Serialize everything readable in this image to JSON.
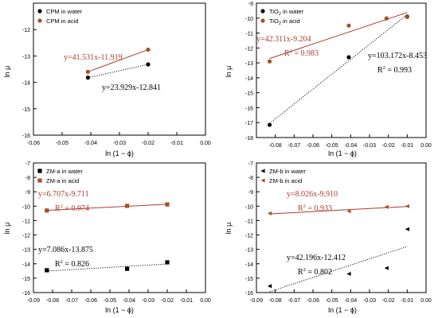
{
  "chart_data": [
    {
      "type": "scatter",
      "xlabel": "ln (1 − ϕ)",
      "ylabel": "ln μ",
      "xlim": [
        -0.06,
        0.0
      ],
      "ylim": [
        -16,
        -11
      ],
      "xticks": [
        -0.06,
        -0.05,
        -0.04,
        -0.03,
        -0.02,
        -0.01,
        0.0
      ],
      "xtick_labels": [
        "-0.06",
        "-0.05",
        "-0.04",
        "-0.03",
        "-0.02",
        "-0.01",
        "0.00"
      ],
      "yticks": [
        -16,
        -15,
        -14,
        -13,
        -12,
        -11
      ],
      "ytick_labels": [
        "-16",
        "-15",
        "-14",
        "-13",
        "-12",
        ""
      ],
      "legend_position": "top-left",
      "series": [
        {
          "name": "CPM in water",
          "marker": "circle",
          "color": "#000000",
          "x": [
            -0.041,
            -0.02
          ],
          "y": [
            -13.82,
            -13.32
          ],
          "fit": {
            "x": [
              -0.041,
              -0.02
            ],
            "style": "dotted",
            "color": "#000000",
            "label": "y=23.929x-12.841"
          }
        },
        {
          "name": "CPM in acid",
          "marker": "circle",
          "color": "#a0522d",
          "x": [
            -0.041,
            -0.02
          ],
          "y": [
            -13.6,
            -12.76
          ],
          "fit": {
            "x": [
              -0.041,
              -0.02
            ],
            "style": "solid",
            "color": "#b03a2e",
            "label": "y=41.531x-11.919"
          }
        }
      ]
    },
    {
      "type": "scatter",
      "xlabel": "ln (1 − ϕ)",
      "ylabel": "ln μ",
      "xlim": [
        -0.09,
        0.0
      ],
      "ylim": [
        -18,
        -9
      ],
      "xticks": [
        -0.09,
        -0.08,
        -0.07,
        -0.06,
        -0.05,
        -0.04,
        -0.03,
        -0.02,
        -0.01,
        0.0
      ],
      "xtick_labels": [
        "",
        "-0.08",
        "-0.07",
        "-0.06",
        "-0.05",
        "-0.04",
        "-0.03",
        "-0.02",
        "-0.01",
        "0.00"
      ],
      "yticks": [
        -18,
        -17,
        -16,
        -15,
        -14,
        -13,
        -12,
        -11,
        -10,
        -9
      ],
      "ytick_labels": [
        "-18",
        "-17",
        "-16",
        "-15",
        "-14",
        "-13",
        "-12",
        "-11",
        "-10",
        "-9"
      ],
      "legend_position": "top-left",
      "series": [
        {
          "name": "TiO",
          "name_sub": "2",
          "name_rest": " in water",
          "marker": "circle",
          "color": "#000000",
          "x": [
            -0.083,
            -0.041,
            -0.01
          ],
          "y": [
            -17.15,
            -12.62,
            -9.9
          ],
          "fit": {
            "x": [
              -0.083,
              -0.01
            ],
            "style": "dotted",
            "color": "#000000",
            "label": "y=103.172x-8.453",
            "r2": "0.993"
          }
        },
        {
          "name": "TiO",
          "name_sub": "2",
          "name_rest": " in acid",
          "marker": "circle",
          "color": "#a0522d",
          "x": [
            -0.083,
            -0.041,
            -0.021,
            -0.01
          ],
          "y": [
            -12.9,
            -10.5,
            -10.02,
            -9.93
          ],
          "fit": {
            "x": [
              -0.083,
              -0.01
            ],
            "style": "solid",
            "color": "#b03a2e",
            "label": "y=42.311x-9.204",
            "r2": "0.983"
          }
        }
      ]
    },
    {
      "type": "scatter",
      "xlabel": "ln (1 − ϕ)",
      "ylabel": "ln μ",
      "xlim": [
        -0.09,
        0.0
      ],
      "ylim": [
        -16,
        -7
      ],
      "xticks": [
        -0.09,
        -0.08,
        -0.07,
        -0.06,
        -0.05,
        -0.04,
        -0.03,
        -0.02,
        -0.01,
        0.0
      ],
      "xtick_labels": [
        "-0.09",
        "-0.08",
        "-0.07",
        "-0.06",
        "-0.05",
        "-0.04",
        "-0.03",
        "-0.02",
        "-0.01",
        "0.00"
      ],
      "yticks": [
        -16,
        -15,
        -14,
        -13,
        -12,
        -11,
        -10,
        -9,
        -8,
        -7
      ],
      "ytick_labels": [
        "-16",
        "-15",
        "-14",
        "-13",
        "-12",
        "-11",
        "-10",
        "-9",
        "-8",
        "-7"
      ],
      "legend_position": "top-left",
      "series": [
        {
          "name": "ZM-a in water",
          "marker": "square",
          "color": "#000000",
          "x": [
            -0.083,
            -0.041,
            -0.02
          ],
          "y": [
            -14.45,
            -14.35,
            -13.9
          ],
          "fit": {
            "x": [
              -0.083,
              -0.02
            ],
            "style": "dotted",
            "color": "#000000",
            "label": "y=7.086x-13.875",
            "r2": "0.826"
          }
        },
        {
          "name": "ZM-a in acid",
          "marker": "square",
          "color": "#a0522d",
          "x": [
            -0.083,
            -0.041,
            -0.02
          ],
          "y": [
            -10.3,
            -9.98,
            -9.88
          ],
          "fit": {
            "x": [
              -0.083,
              -0.02
            ],
            "style": "solid",
            "color": "#b03a2e",
            "label": "y=6.707x-9.711",
            "r2": "0.974"
          }
        }
      ]
    },
    {
      "type": "scatter",
      "xlabel": "ln (1 − ϕ)",
      "ylabel": "ln μ",
      "xlim": [
        -0.09,
        0.0
      ],
      "ylim": [
        -16,
        -7
      ],
      "xticks": [
        -0.09,
        -0.08,
        -0.07,
        -0.06,
        -0.05,
        -0.04,
        -0.03,
        -0.02,
        -0.01,
        0.0
      ],
      "xtick_labels": [
        "-0.09",
        "-0.08",
        "-0.07",
        "-0.06",
        "-0.05",
        "-0.04",
        "-0.03",
        "-0.02",
        "-0.01",
        "0.00"
      ],
      "yticks": [
        -16,
        -15,
        -14,
        -13,
        -12,
        -11,
        -10,
        -9,
        -8,
        -7
      ],
      "ytick_labels": [
        "-16",
        "-15",
        "-14",
        "-13",
        "-12",
        "-11",
        "-10",
        "-9",
        "-8",
        "-7"
      ],
      "legend_position": "top-left",
      "series": [
        {
          "name": "ZM-b in water",
          "marker": "triangle-left",
          "color": "#000000",
          "x": [
            -0.083,
            -0.041,
            -0.021,
            -0.01
          ],
          "y": [
            -15.55,
            -14.7,
            -14.3,
            -11.6
          ],
          "fit": {
            "x": [
              -0.083,
              -0.01
            ],
            "style": "dotted",
            "color": "#000000",
            "label": "y=42.196x-12.412",
            "r2": "0.802"
          }
        },
        {
          "name": "ZM-b in acid",
          "marker": "triangle-left",
          "color": "#a0522d",
          "x": [
            -0.083,
            -0.041,
            -0.021,
            -0.01
          ],
          "y": [
            -10.5,
            -10.35,
            -10.05,
            -10.0
          ],
          "fit": {
            "x": [
              -0.083,
              -0.01
            ],
            "style": "solid",
            "color": "#b03a2e",
            "label": "y=8.026x-9.910",
            "r2": "0.933"
          }
        }
      ]
    }
  ]
}
